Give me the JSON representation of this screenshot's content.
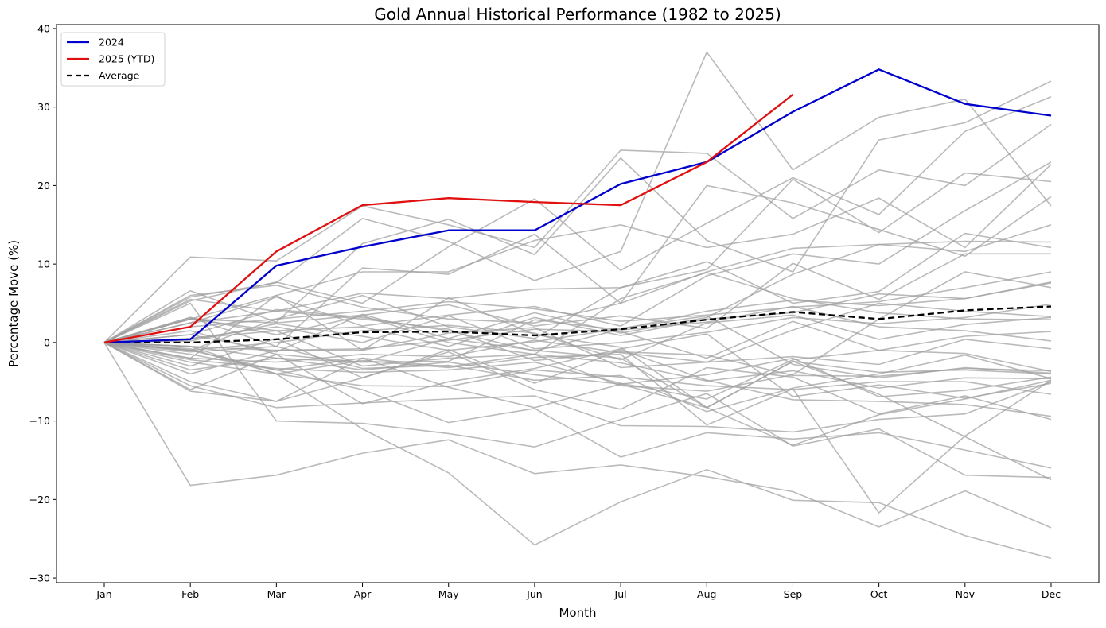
{
  "chart_data": {
    "type": "line",
    "title": "Gold Annual Historical Performance (1982 to 2025)",
    "xlabel": "Month",
    "ylabel": "Percentage Move (%)",
    "categories": [
      "Jan",
      "Feb",
      "Mar",
      "Apr",
      "May",
      "Jun",
      "Jul",
      "Aug",
      "Sep",
      "Oct",
      "Nov",
      "Dec"
    ],
    "yticks": [
      -30,
      -20,
      -10,
      0,
      10,
      20,
      30,
      40
    ],
    "ylim": [
      -30.6,
      40.5
    ],
    "grid": false,
    "legend": {
      "placement": "top-left",
      "entries": [
        {
          "label": "2024",
          "color": "#0000cc",
          "style": "solid"
        },
        {
          "label": "2025 (YTD)",
          "color": "#e01010",
          "style": "solid"
        },
        {
          "label": "Average",
          "color": "#000000",
          "style": "dashed"
        }
      ]
    },
    "colors": {
      "history": "#a0a0a0",
      "y2024": "#0000cc",
      "y2025": "#e01010",
      "average": "#000000"
    },
    "highlight_series": [
      {
        "name": "2024",
        "values": [
          0,
          0.4,
          9.8,
          12.2,
          14.3,
          14.3,
          20.2,
          23.0,
          29.4,
          34.8,
          30.4,
          28.9
        ]
      },
      {
        "name": "2025 (YTD)",
        "values": [
          0,
          2.0,
          11.6,
          17.5,
          18.4,
          17.9,
          17.5,
          23.0,
          31.6
        ]
      },
      {
        "name": "Average",
        "values": [
          0,
          0.0,
          0.4,
          1.3,
          1.4,
          0.9,
          1.7,
          2.9,
          3.9,
          3.0,
          4.1,
          4.6
        ]
      }
    ],
    "history_series": [
      {
        "name": "hist-1",
        "values": [
          0,
          10.9,
          10.4,
          17.4,
          15.0,
          12.1,
          24.5,
          24.1,
          15.8,
          22.0,
          20.0,
          27.8
        ]
      },
      {
        "name": "hist-2",
        "values": [
          0,
          5.8,
          7.6,
          15.8,
          12.9,
          7.9,
          11.6,
          37.0,
          22.0,
          28.7,
          31.0,
          17.4
        ]
      },
      {
        "name": "hist-3",
        "values": [
          0,
          6.6,
          2.6,
          12.6,
          15.7,
          11.2,
          23.5,
          13.0,
          9.0,
          25.8,
          28.0,
          33.3
        ]
      },
      {
        "name": "hist-4",
        "values": [
          0,
          5.3,
          7.7,
          5.0,
          12.2,
          18.3,
          9.2,
          15.2,
          21.0,
          16.3,
          26.9,
          31.3
        ]
      },
      {
        "name": "hist-5",
        "values": [
          0,
          3.2,
          -0.5,
          9.5,
          8.7,
          13.8,
          5.0,
          20.0,
          17.8,
          14.4,
          11.0,
          18.6
        ]
      },
      {
        "name": "hist-6",
        "values": [
          0,
          3.0,
          6.0,
          9.0,
          9.0,
          13.0,
          15.0,
          12.1,
          13.8,
          18.4,
          12.1,
          22.7
        ]
      },
      {
        "name": "hist-7",
        "values": [
          0,
          2.5,
          4.0,
          6.3,
          5.6,
          6.8,
          7.0,
          9.3,
          20.8,
          14.0,
          21.6,
          20.5
        ]
      },
      {
        "name": "hist-8",
        "values": [
          0,
          6.0,
          7.3,
          4.5,
          3.0,
          2.5,
          5.0,
          9.0,
          12.0,
          12.5,
          12.9,
          12.8
        ]
      },
      {
        "name": "hist-9",
        "values": [
          0,
          -1.0,
          3.0,
          6.0,
          2.0,
          0.5,
          7.0,
          10.3,
          5.0,
          6.5,
          13.9,
          12.1
        ]
      },
      {
        "name": "hist-10",
        "values": [
          0,
          2.5,
          5.8,
          2.1,
          3.5,
          4.6,
          2.1,
          8.5,
          11.3,
          10.0,
          16.8,
          23.0
        ]
      },
      {
        "name": "hist-11",
        "values": [
          0,
          1.0,
          -1.2,
          3.6,
          0.5,
          3.8,
          1.2,
          3.2,
          8.7,
          12.5,
          11.6,
          15.0
        ]
      },
      {
        "name": "hist-12",
        "values": [
          0,
          2.0,
          3.0,
          4.0,
          5.2,
          4.3,
          2.7,
          3.5,
          4.5,
          5.2,
          7.0,
          9.0
        ]
      },
      {
        "name": "hist-13",
        "values": [
          0,
          3.0,
          2.5,
          3.5,
          4.8,
          2.1,
          3.4,
          1.8,
          10.1,
          5.5,
          11.3,
          11.3
        ]
      },
      {
        "name": "hist-14",
        "values": [
          0,
          3.0,
          1.5,
          2.0,
          -0.5,
          3.2,
          0.9,
          3.0,
          3.8,
          6.2,
          5.6,
          7.7
        ]
      },
      {
        "name": "hist-15",
        "values": [
          0,
          1.0,
          4.2,
          3.2,
          1.5,
          -1.1,
          1.7,
          4.0,
          5.4,
          4.7,
          5.6,
          7.6
        ]
      },
      {
        "name": "hist-16",
        "values": [
          0,
          0.5,
          2.0,
          0.0,
          3.4,
          -0.8,
          0.0,
          1.3,
          3.2,
          2.4,
          3.2,
          4.9
        ]
      },
      {
        "name": "hist-17",
        "values": [
          0,
          -1.0,
          0.0,
          1.5,
          2.2,
          1.2,
          -2.2,
          2.5,
          3.5,
          0.4,
          2.3,
          3.2
        ]
      },
      {
        "name": "hist-18",
        "values": [
          0,
          -0.5,
          -1.0,
          -0.8,
          0.3,
          1.7,
          1.4,
          -2.0,
          2.7,
          -1.0,
          0.8,
          1.4
        ]
      },
      {
        "name": "hist-19",
        "values": [
          0,
          -2.0,
          -2.5,
          -1.5,
          -1.8,
          0.3,
          -1.3,
          -2.5,
          -1.8,
          -2.8,
          0.4,
          -0.8
        ]
      },
      {
        "name": "hist-20",
        "values": [
          0,
          5.5,
          4.0,
          3.0,
          1.7,
          -2.3,
          -1.2,
          -1.6,
          -4.2,
          -4.3,
          -3.3,
          -3.6
        ]
      },
      {
        "name": "hist-21",
        "values": [
          0,
          -1.5,
          -3.5,
          -2.0,
          -3.1,
          -1.5,
          -2.6,
          -4.9,
          -3.6,
          -5.8,
          -4.5,
          -4.6
        ]
      },
      {
        "name": "hist-22",
        "values": [
          0,
          -3.5,
          -2.0,
          -3.5,
          -2.5,
          -4.1,
          -5.3,
          -4.1,
          -2.0,
          -6.9,
          -6.1,
          -4.4
        ]
      },
      {
        "name": "hist-23",
        "values": [
          0,
          -2.5,
          -4.0,
          -5.5,
          -5.6,
          -3.5,
          -4.4,
          -5.5,
          -6.0,
          -5.0,
          -5.0,
          -6.6
        ]
      },
      {
        "name": "hist-24",
        "values": [
          0,
          -0.5,
          -2.0,
          -2.5,
          0.5,
          -1.0,
          -2.0,
          -8.3,
          -2.4,
          -3.8,
          -3.5,
          -4.0
        ]
      },
      {
        "name": "hist-25",
        "values": [
          0,
          -3.0,
          0.5,
          -4.5,
          -0.9,
          -5.2,
          -0.9,
          -4.8,
          -7.3,
          -7.5,
          -7.9,
          -9.4
        ]
      },
      {
        "name": "hist-26",
        "values": [
          0,
          -5.0,
          -7.5,
          -4.5,
          -1.2,
          -6.0,
          -8.5,
          -3.2,
          -4.4,
          -9.1,
          -6.8,
          -9.8
        ]
      },
      {
        "name": "hist-27",
        "values": [
          0,
          -6.2,
          -7.5,
          -2.0,
          -5.7,
          -8.3,
          -5.3,
          -8.3,
          -13.1,
          -9.2,
          -7.2,
          -4.8
        ]
      },
      {
        "name": "hist-28",
        "values": [
          0,
          -5.5,
          -8.3,
          -7.7,
          -7.2,
          -6.8,
          -10.6,
          -10.7,
          -11.4,
          -9.8,
          -9.1,
          -5.0
        ]
      },
      {
        "name": "hist-29",
        "values": [
          0,
          -0.5,
          -4.0,
          -2.3,
          -3.2,
          -1.9,
          -1.5,
          -10.5,
          -5.9,
          -21.7,
          -11.9,
          -4.8
        ]
      },
      {
        "name": "hist-30",
        "values": [
          0,
          5.0,
          -10.0,
          -10.3,
          -11.6,
          -13.3,
          -9.8,
          -6.5,
          -13.2,
          -11.0,
          -16.9,
          -17.2
        ]
      },
      {
        "name": "hist-31",
        "values": [
          0,
          -18.2,
          -16.9,
          -14.1,
          -12.4,
          -16.7,
          -15.6,
          -17.1,
          -19.0,
          -23.5,
          -18.9,
          -23.6
        ]
      },
      {
        "name": "hist-32",
        "values": [
          0,
          -0.8,
          -4.0,
          -11.0,
          -16.6,
          -25.8,
          -20.3,
          -16.2,
          -20.1,
          -20.4,
          -24.6,
          -27.5
        ]
      },
      {
        "name": "hist-33",
        "values": [
          0,
          -1.0,
          -3.5,
          -6.0,
          -10.2,
          -8.4,
          -14.6,
          -11.5,
          -12.3,
          -11.5,
          -13.7,
          -16.0
        ]
      },
      {
        "name": "hist-34",
        "values": [
          0,
          -2.0,
          6.0,
          -1.0,
          5.7,
          1.0,
          -0.6,
          -8.3,
          -2.4,
          -6.6,
          -12.0,
          -17.5
        ]
      },
      {
        "name": "hist-35",
        "values": [
          0,
          0.5,
          1.5,
          -3.0,
          -2.0,
          -1.5,
          -5.5,
          -6.2,
          -4.1,
          3.0,
          9.0,
          7.0
        ]
      },
      {
        "name": "hist-36",
        "values": [
          0,
          -4.0,
          -1.0,
          -1.0,
          1.2,
          1.9,
          -3.2,
          -2.5,
          1.6,
          5.0,
          4.0,
          3.3
        ]
      },
      {
        "name": "hist-37",
        "values": [
          0,
          3.2,
          1.0,
          3.4,
          0.0,
          -1.5,
          5.6,
          8.9,
          5.6,
          3.8,
          3.0,
          2.9
        ]
      },
      {
        "name": "hist-38",
        "values": [
          0,
          -1.2,
          -0.5,
          -3.3,
          -2.9,
          -4.8,
          -4.2,
          -8.8,
          -5.8,
          -4.0,
          -1.6,
          -4.6
        ]
      },
      {
        "name": "hist-39",
        "values": [
          0,
          0.2,
          2.4,
          0.8,
          -1.0,
          0.1,
          1.8,
          3.4,
          -2.8,
          -4.5,
          -3.2,
          -3.9
        ]
      },
      {
        "name": "hist-40",
        "values": [
          0,
          -2.2,
          -3.3,
          -3.8,
          -3.5,
          -2.5,
          -5.2,
          -7.2,
          -2.2,
          -1.0,
          -1.4,
          -3.7
        ]
      },
      {
        "name": "hist-41",
        "values": [
          0,
          1.5,
          -1.5,
          -2.5,
          -2.4,
          2.9,
          1.6,
          2.6,
          4.6,
          2.0,
          1.5,
          0.2
        ]
      },
      {
        "name": "hist-42",
        "values": [
          0,
          -6.0,
          -1.5,
          -7.8,
          -5.0,
          -3.3,
          -0.8,
          1.1,
          -6.9,
          -5.4,
          -7.1,
          -5.2
        ]
      }
    ]
  }
}
